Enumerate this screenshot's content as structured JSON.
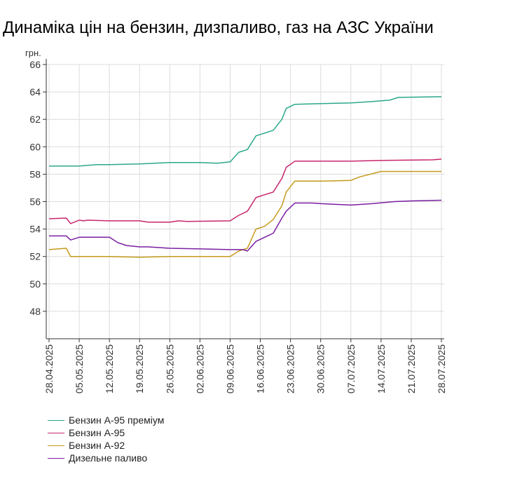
{
  "title": "Динаміка цін на бензин, дизпаливо, газ на АЗС України",
  "chart_data": {
    "type": "line",
    "title": "Динаміка цін на бензин, дизпаливо, газ на АЗС України",
    "ylabel": "грн.",
    "ylim": [
      46,
      66
    ],
    "yticks": [
      48,
      50,
      52,
      54,
      56,
      58,
      60,
      62,
      64,
      66
    ],
    "grid": true,
    "legend_position": "bottom-left",
    "xticks": [
      "28.04.2025",
      "05.05.2025",
      "12.05.2025",
      "19.05.2025",
      "26.05.2025",
      "02.06.2025",
      "09.06.2025",
      "16.06.2025",
      "23.06.2025",
      "30.06.2025",
      "07.07.2025",
      "14.07.2025",
      "21.07.2025",
      "28.07.2025"
    ],
    "series": [
      {
        "name": "Бензин А-95 преміум",
        "color": "#2aa88a",
        "points": [
          [
            "28.04.2025",
            58.6
          ],
          [
            "05.05.2025",
            58.6
          ],
          [
            "09.05.2025",
            58.7
          ],
          [
            "12.05.2025",
            58.7
          ],
          [
            "19.05.2025",
            58.75
          ],
          [
            "26.05.2025",
            58.85
          ],
          [
            "02.06.2025",
            58.85
          ],
          [
            "06.06.2025",
            58.8
          ],
          [
            "09.06.2025",
            58.9
          ],
          [
            "11.06.2025",
            59.6
          ],
          [
            "13.06.2025",
            59.8
          ],
          [
            "15.06.2025",
            60.8
          ],
          [
            "17.06.2025",
            61.0
          ],
          [
            "19.06.2025",
            61.2
          ],
          [
            "21.06.2025",
            62.0
          ],
          [
            "22.06.2025",
            62.8
          ],
          [
            "24.06.2025",
            63.1
          ],
          [
            "30.06.2025",
            63.15
          ],
          [
            "07.07.2025",
            63.2
          ],
          [
            "12.07.2025",
            63.3
          ],
          [
            "16.07.2025",
            63.4
          ],
          [
            "18.07.2025",
            63.6
          ],
          [
            "28.07.2025",
            63.65
          ]
        ]
      },
      {
        "name": "Бензин А-95",
        "color": "#c8266e",
        "points": [
          [
            "28.04.2025",
            54.75
          ],
          [
            "02.05.2025",
            54.8
          ],
          [
            "03.05.2025",
            54.4
          ],
          [
            "05.05.2025",
            54.65
          ],
          [
            "06.05.2025",
            54.6
          ],
          [
            "07.05.2025",
            54.65
          ],
          [
            "12.05.2025",
            54.6
          ],
          [
            "19.05.2025",
            54.6
          ],
          [
            "21.05.2025",
            54.5
          ],
          [
            "26.05.2025",
            54.5
          ],
          [
            "28.05.2025",
            54.6
          ],
          [
            "30.05.2025",
            54.55
          ],
          [
            "09.06.2025",
            54.6
          ],
          [
            "11.06.2025",
            55.0
          ],
          [
            "13.06.2025",
            55.3
          ],
          [
            "15.06.2025",
            56.3
          ],
          [
            "17.06.2025",
            56.5
          ],
          [
            "19.06.2025",
            56.7
          ],
          [
            "21.06.2025",
            57.7
          ],
          [
            "22.06.2025",
            58.5
          ],
          [
            "24.06.2025",
            58.95
          ],
          [
            "07.07.2025",
            58.95
          ],
          [
            "14.07.2025",
            59.0
          ],
          [
            "26.07.2025",
            59.05
          ],
          [
            "28.07.2025",
            59.1
          ]
        ]
      },
      {
        "name": "Бензин А-92",
        "color": "#c49a1a",
        "points": [
          [
            "28.04.2025",
            52.5
          ],
          [
            "02.05.2025",
            52.6
          ],
          [
            "03.05.2025",
            52.0
          ],
          [
            "05.05.2025",
            52.0
          ],
          [
            "12.05.2025",
            52.0
          ],
          [
            "19.05.2025",
            51.95
          ],
          [
            "26.05.2025",
            52.0
          ],
          [
            "02.06.2025",
            52.0
          ],
          [
            "09.06.2025",
            52.0
          ],
          [
            "11.06.2025",
            52.4
          ],
          [
            "13.06.2025",
            52.6
          ],
          [
            "15.06.2025",
            54.0
          ],
          [
            "17.06.2025",
            54.2
          ],
          [
            "19.06.2025",
            54.7
          ],
          [
            "21.06.2025",
            55.7
          ],
          [
            "22.06.2025",
            56.7
          ],
          [
            "24.06.2025",
            57.5
          ],
          [
            "30.06.2025",
            57.5
          ],
          [
            "07.07.2025",
            57.55
          ],
          [
            "09.07.2025",
            57.8
          ],
          [
            "14.07.2025",
            58.2
          ],
          [
            "28.07.2025",
            58.2
          ]
        ]
      },
      {
        "name": "Дизельне паливо",
        "color": "#7b1fa2",
        "points": [
          [
            "28.04.2025",
            53.5
          ],
          [
            "02.05.2025",
            53.5
          ],
          [
            "03.05.2025",
            53.2
          ],
          [
            "05.05.2025",
            53.4
          ],
          [
            "12.05.2025",
            53.4
          ],
          [
            "14.05.2025",
            53.0
          ],
          [
            "16.05.2025",
            52.8
          ],
          [
            "19.05.2025",
            52.7
          ],
          [
            "21.05.2025",
            52.7
          ],
          [
            "26.05.2025",
            52.6
          ],
          [
            "02.06.2025",
            52.55
          ],
          [
            "09.06.2025",
            52.5
          ],
          [
            "12.06.2025",
            52.5
          ],
          [
            "13.06.2025",
            52.4
          ],
          [
            "15.06.2025",
            53.1
          ],
          [
            "17.06.2025",
            53.4
          ],
          [
            "19.06.2025",
            53.7
          ],
          [
            "21.06.2025",
            54.8
          ],
          [
            "22.06.2025",
            55.3
          ],
          [
            "24.06.2025",
            55.9
          ],
          [
            "28.06.2025",
            55.9
          ],
          [
            "30.06.2025",
            55.85
          ],
          [
            "07.07.2025",
            55.75
          ],
          [
            "12.07.2025",
            55.85
          ],
          [
            "17.07.2025",
            56.0
          ],
          [
            "21.07.2025",
            56.05
          ],
          [
            "28.07.2025",
            56.1
          ]
        ]
      }
    ]
  }
}
